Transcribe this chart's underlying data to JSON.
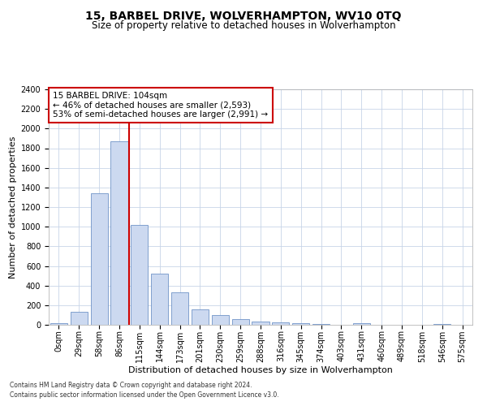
{
  "title": "15, BARBEL DRIVE, WOLVERHAMPTON, WV10 0TQ",
  "subtitle": "Size of property relative to detached houses in Wolverhampton",
  "xlabel": "Distribution of detached houses by size in Wolverhampton",
  "ylabel": "Number of detached properties",
  "categories": [
    "0sqm",
    "29sqm",
    "58sqm",
    "86sqm",
    "115sqm",
    "144sqm",
    "173sqm",
    "201sqm",
    "230sqm",
    "259sqm",
    "288sqm",
    "316sqm",
    "345sqm",
    "374sqm",
    "403sqm",
    "431sqm",
    "460sqm",
    "489sqm",
    "518sqm",
    "546sqm",
    "575sqm"
  ],
  "bar_heights": [
    15,
    130,
    1340,
    1870,
    1020,
    525,
    330,
    160,
    100,
    55,
    35,
    25,
    20,
    10,
    0,
    15,
    0,
    0,
    0,
    10,
    0
  ],
  "bar_color": "#ccd9f0",
  "bar_edge_color": "#7094c8",
  "vline_color": "#cc0000",
  "annotation_text": "15 BARBEL DRIVE: 104sqm\n← 46% of detached houses are smaller (2,593)\n53% of semi-detached houses are larger (2,991) →",
  "annotation_box_color": "#ffffff",
  "annotation_box_edge_color": "#cc0000",
  "ylim": [
    0,
    2400
  ],
  "yticks": [
    0,
    200,
    400,
    600,
    800,
    1000,
    1200,
    1400,
    1600,
    1800,
    2000,
    2200,
    2400
  ],
  "footnote1": "Contains HM Land Registry data © Crown copyright and database right 2024.",
  "footnote2": "Contains public sector information licensed under the Open Government Licence v3.0.",
  "bg_color": "#ffffff",
  "grid_color": "#c8d4e8",
  "title_fontsize": 10,
  "subtitle_fontsize": 8.5,
  "axis_label_fontsize": 8,
  "tick_fontsize": 7,
  "annotation_fontsize": 7.5,
  "footnote_fontsize": 5.5
}
